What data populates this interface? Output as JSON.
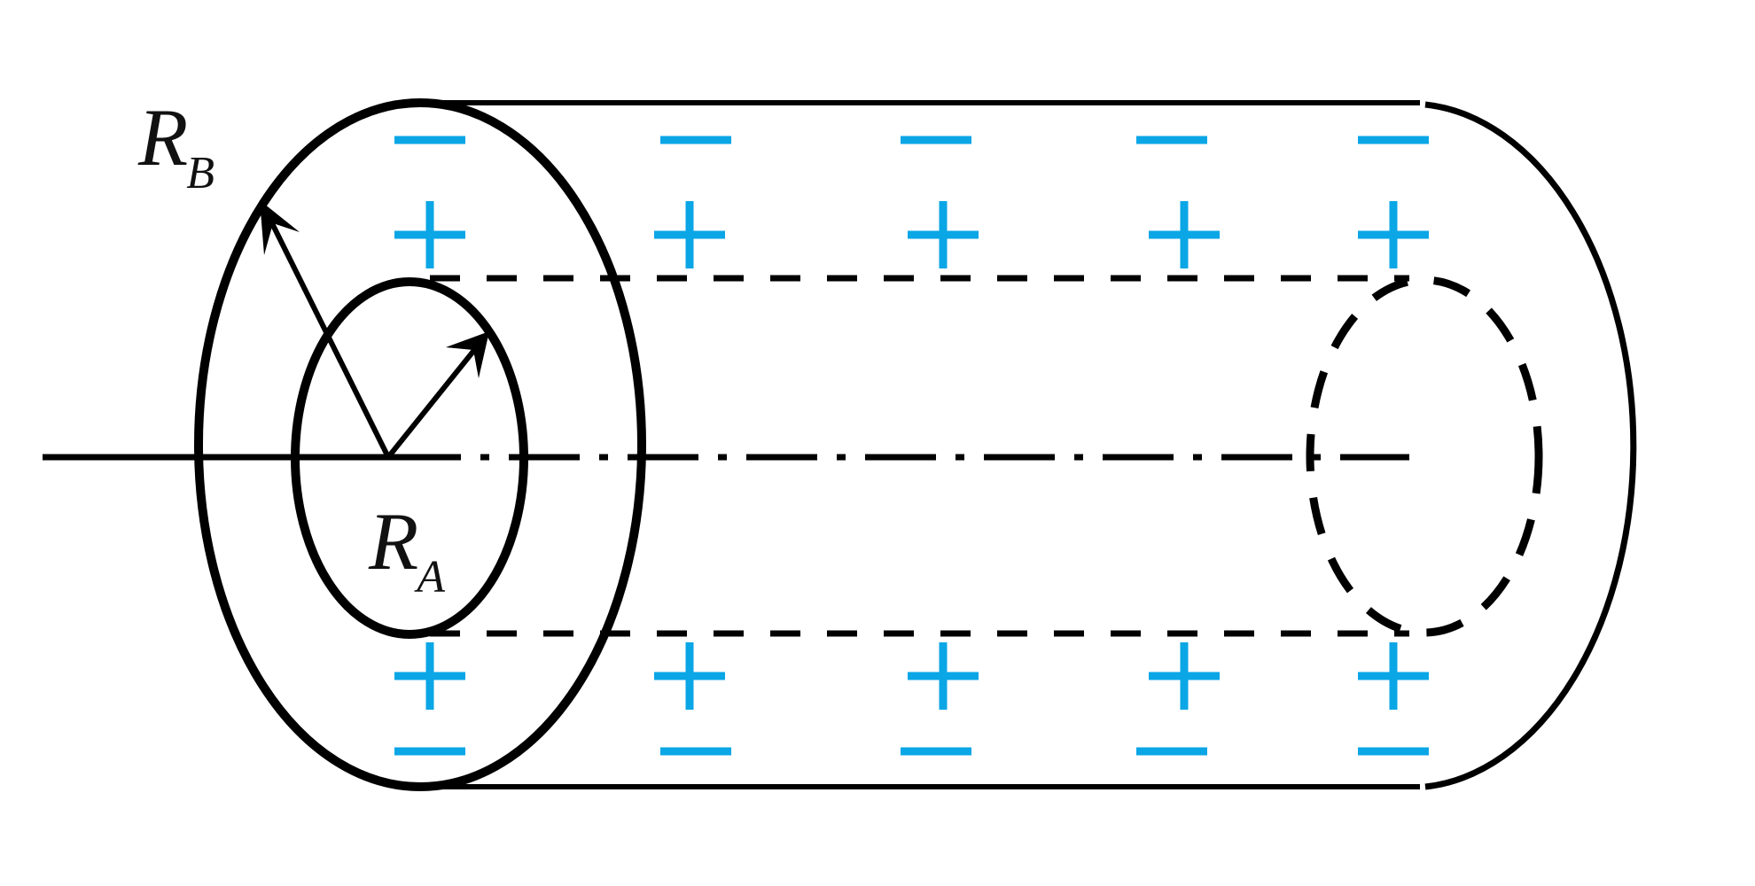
{
  "labels": {
    "outer_radius": {
      "main": "R",
      "sub": "B"
    },
    "inner_radius": {
      "main": "R",
      "sub": "A"
    }
  },
  "charges": {
    "columns": 5,
    "outer_surface_sign": "−",
    "inner_surface_sign": "+",
    "color": "#0aa6e6"
  },
  "colors": {
    "line": "#000000",
    "charge": "#0aa6e6"
  }
}
